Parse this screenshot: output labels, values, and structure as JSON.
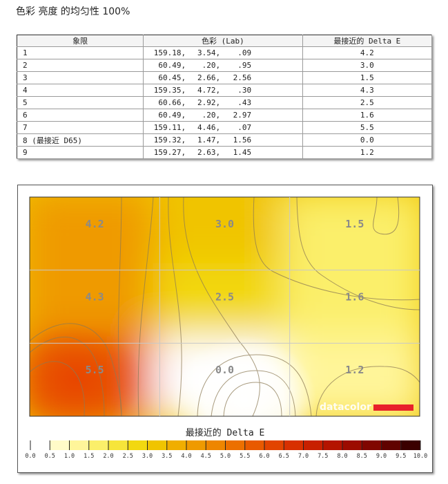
{
  "page_title": "色彩 亮度 的均匀性 100%",
  "table": {
    "headers": [
      "象限",
      "色彩 (Lab)",
      "最接近的 Delta E"
    ],
    "rows": [
      {
        "label": "1",
        "L": "159.18,",
        "a": "3.54,",
        "b": ".09",
        "de": "4.2"
      },
      {
        "label": "2",
        "L": "60.49,",
        "a": ".20,",
        "b": ".95",
        "de": "3.0"
      },
      {
        "label": "3",
        "L": "60.45,",
        "a": "2.66,",
        "b": "2.56",
        "de": "1.5"
      },
      {
        "label": "4",
        "L": "159.35,",
        "a": "4.72,",
        "b": ".30",
        "de": "4.3"
      },
      {
        "label": "5",
        "L": "60.66,",
        "a": "2.92,",
        "b": ".43",
        "de": "2.5"
      },
      {
        "label": "6",
        "L": "60.49,",
        "a": ".20,",
        "b": "2.97",
        "de": "1.6"
      },
      {
        "label": "7",
        "L": "159.11,",
        "a": "4.46,",
        "b": ".07",
        "de": "5.5"
      },
      {
        "label": "8 (最接近 D65)",
        "L": "159.32,",
        "a": "1.47,",
        "b": "1.56",
        "de": "0.0"
      },
      {
        "label": "9",
        "L": "159.27,",
        "a": "2.63,",
        "b": "1.45",
        "de": "1.2"
      }
    ]
  },
  "chart_data": {
    "type": "heatmap",
    "title": "最接近的 Delta E",
    "grid": [
      [
        4.2,
        3.0,
        1.5
      ],
      [
        4.3,
        2.5,
        1.6
      ],
      [
        5.5,
        0.0,
        1.2
      ]
    ],
    "cell_labels": [
      "4.2",
      "3.0",
      "1.5",
      "4.3",
      "2.5",
      "1.6",
      "5.5",
      "0.0",
      "1.2"
    ],
    "scale_min": 0,
    "scale_max": 10,
    "scale_ticks": [
      "0.0",
      "0.5",
      "1.0",
      "1.5",
      "2.0",
      "2.5",
      "3.0",
      "3.5",
      "4.0",
      "4.5",
      "5.0",
      "5.5",
      "6.0",
      "6.5",
      "7.0",
      "7.5",
      "8.0",
      "8.5",
      "9.0",
      "9.5",
      "10.0"
    ],
    "scale_colors": [
      "#ffffff",
      "#fffbc8",
      "#fff59a",
      "#fbef6a",
      "#f6e53a",
      "#f2d810",
      "#f0c400",
      "#f0ae00",
      "#ef9a00",
      "#ee8600",
      "#ec7000",
      "#e85a00",
      "#e24400",
      "#d83000",
      "#c82000",
      "#b41400",
      "#9c0c00",
      "#800600",
      "#600200",
      "#3a0000"
    ],
    "watermark": "datacolor",
    "accent": "#e8202a"
  }
}
